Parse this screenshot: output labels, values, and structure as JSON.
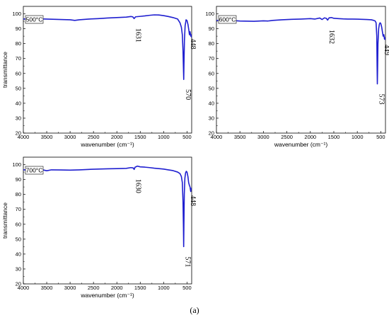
{
  "caption": "(a)",
  "series_color": "#1f1fd0",
  "chart_data": [
    {
      "type": "line",
      "label": "500°C",
      "xlabel": "wavenumber (cm⁻¹)",
      "ylabel": "transmittance",
      "xlim": [
        4000,
        400
      ],
      "ylim": [
        20,
        105
      ],
      "xticks": [
        4000,
        3500,
        3000,
        2500,
        2000,
        1500,
        1000,
        500
      ],
      "yticks": [
        20,
        30,
        40,
        50,
        60,
        70,
        80,
        90,
        100
      ],
      "annotations": [
        {
          "text": "1631",
          "x": 1631,
          "y": 97
        },
        {
          "text": "570",
          "x": 570,
          "y": 56
        },
        {
          "text": "448",
          "x": 448,
          "y": 90
        }
      ],
      "x": [
        4000,
        3800,
        3500,
        3200,
        3000,
        2900,
        2800,
        2600,
        2400,
        2200,
        2000,
        1800,
        1700,
        1660,
        1631,
        1600,
        1500,
        1400,
        1300,
        1200,
        1100,
        1000,
        900,
        800,
        700,
        650,
        620,
        600,
        585,
        575,
        570,
        565,
        555,
        540,
        520,
        500,
        480,
        460,
        448,
        435,
        420,
        410,
        400
      ],
      "y": [
        96.5,
        96.8,
        96.5,
        96.2,
        96.0,
        95.6,
        96.0,
        96.5,
        96.8,
        97.2,
        97.5,
        97.8,
        98.2,
        98.0,
        96.8,
        98.0,
        98.3,
        98.6,
        99.0,
        99.3,
        99.2,
        98.8,
        98.2,
        97.5,
        96.5,
        94.0,
        91.0,
        86.0,
        75.0,
        62.0,
        56.0,
        66.0,
        82.0,
        92.0,
        96.0,
        95.5,
        93.0,
        89.0,
        86.0,
        88.0,
        85.0,
        86.0,
        84.0
      ]
    },
    {
      "type": "line",
      "label": "600°C",
      "xlabel": "wavenumber (cm⁻¹)",
      "ylabel": "",
      "xlim": [
        4000,
        400
      ],
      "ylim": [
        20,
        105
      ],
      "xticks": [
        4000,
        3500,
        3000,
        2500,
        2000,
        1500,
        1000,
        500
      ],
      "yticks": [
        20,
        30,
        40,
        50,
        60,
        70,
        80,
        90,
        100
      ],
      "annotations": [
        {
          "text": "1632",
          "x": 1632,
          "y": 96
        },
        {
          "text": "573",
          "x": 573,
          "y": 53
        },
        {
          "text": "449",
          "x": 449,
          "y": 86
        }
      ],
      "x": [
        4000,
        3800,
        3500,
        3200,
        3000,
        2900,
        2800,
        2600,
        2400,
        2200,
        2000,
        1900,
        1800,
        1750,
        1700,
        1660,
        1632,
        1600,
        1550,
        1500,
        1400,
        1300,
        1200,
        1100,
        1000,
        900,
        800,
        700,
        650,
        620,
        600,
        585,
        578,
        573,
        568,
        560,
        545,
        530,
        515,
        500,
        480,
        465,
        449,
        435,
        420,
        410,
        400
      ],
      "y": [
        95.5,
        95.8,
        95.2,
        95.0,
        95.3,
        95.2,
        95.6,
        96.0,
        96.3,
        96.5,
        96.8,
        96.5,
        97.2,
        96.2,
        97.3,
        97.0,
        95.8,
        97.3,
        97.5,
        97.0,
        96.8,
        96.6,
        96.5,
        96.5,
        96.4,
        96.3,
        96.2,
        96.0,
        95.6,
        95.2,
        94.0,
        85.0,
        65.0,
        53.0,
        62.0,
        80.0,
        90.0,
        93.0,
        94.0,
        93.5,
        91.0,
        88.0,
        85.0,
        86.0,
        83.0,
        84.0,
        82.5
      ]
    },
    {
      "type": "line",
      "label": "700°C",
      "xlabel": "wavenumber (cm⁻¹)",
      "ylabel": "transmittance",
      "xlim": [
        4000,
        400
      ],
      "ylim": [
        20,
        105
      ],
      "xticks": [
        4000,
        3500,
        3000,
        2500,
        2000,
        1500,
        1000,
        500
      ],
      "yticks": [
        20,
        30,
        40,
        50,
        60,
        70,
        80,
        90,
        100
      ],
      "annotations": [
        {
          "text": "1630",
          "x": 1630,
          "y": 97
        },
        {
          "text": "571",
          "x": 571,
          "y": 45
        },
        {
          "text": "448",
          "x": 448,
          "y": 86
        }
      ],
      "x": [
        4000,
        3800,
        3700,
        3600,
        3500,
        3400,
        3200,
        3000,
        2800,
        2600,
        2400,
        2200,
        2000,
        1800,
        1700,
        1650,
        1630,
        1610,
        1560,
        1500,
        1400,
        1300,
        1200,
        1100,
        1000,
        900,
        800,
        700,
        650,
        620,
        600,
        585,
        576,
        571,
        566,
        558,
        545,
        530,
        515,
        500,
        480,
        465,
        448,
        435,
        420,
        410,
        400
      ],
      "y": [
        96.5,
        96.5,
        95.8,
        96.6,
        95.9,
        96.5,
        96.4,
        96.3,
        96.5,
        96.8,
        97.0,
        97.2,
        97.3,
        97.5,
        98.0,
        97.8,
        96.8,
        98.3,
        99.0,
        98.5,
        98.3,
        98.0,
        97.6,
        97.3,
        97.0,
        96.5,
        96.0,
        95.0,
        94.0,
        92.0,
        88.0,
        75.0,
        58.0,
        45.0,
        60.0,
        80.0,
        91.0,
        94.5,
        95.5,
        95.0,
        92.0,
        88.0,
        86.0,
        85.0,
        82.0,
        84.0,
        83.0
      ]
    }
  ]
}
